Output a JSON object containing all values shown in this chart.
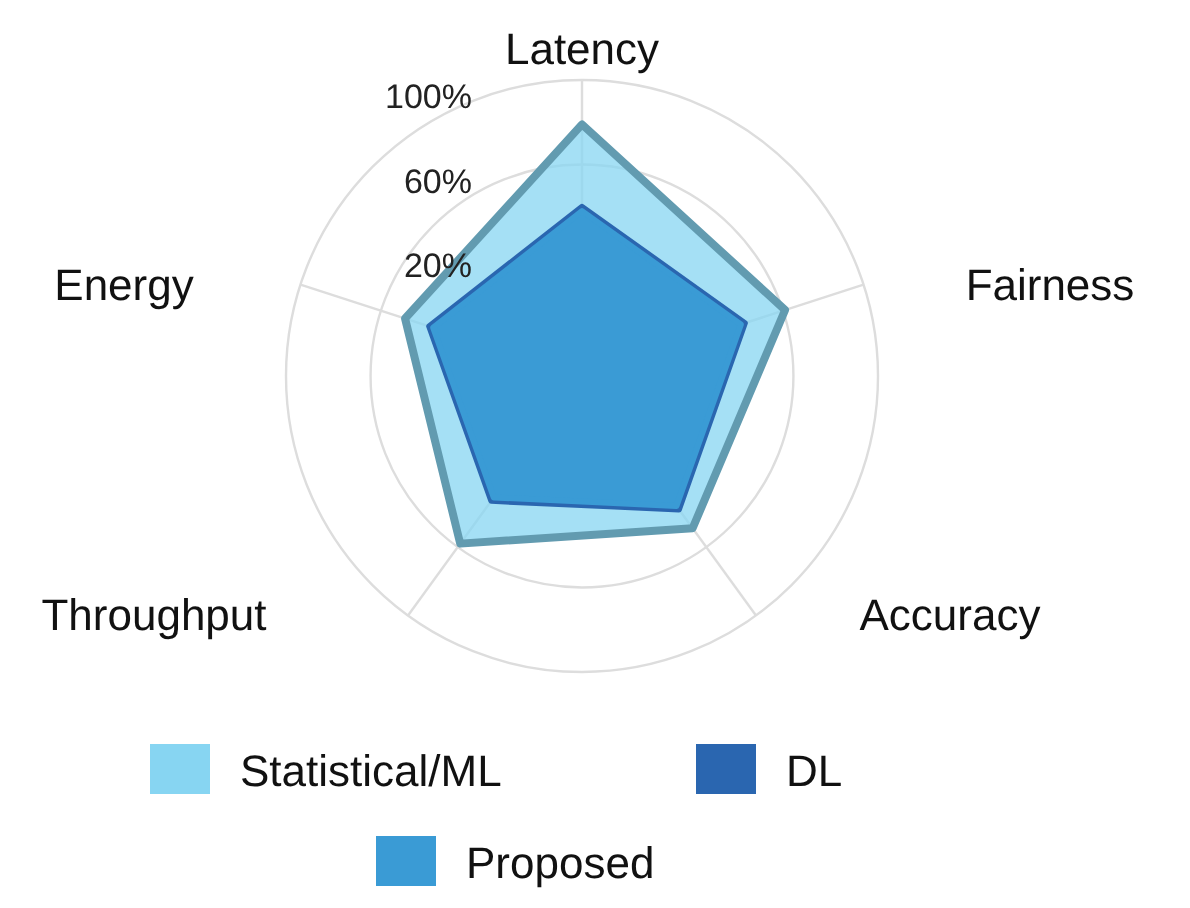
{
  "chart_data": {
    "type": "radar",
    "categories": [
      "Latency",
      "Fairness",
      "Accuracy",
      "Throughput",
      "Energy"
    ],
    "ylim": [
      -40,
      100
    ],
    "yticks": [
      {
        "value": 20,
        "label": "20%"
      },
      {
        "value": 60,
        "label": "60%"
      },
      {
        "value": 100,
        "label": "100%"
      }
    ],
    "grid": true,
    "legend": "bottom",
    "series": [
      {
        "name": "Statistical/ML",
        "color": "#87d5f2",
        "values": [
          79,
          61,
          49,
          58,
          48
        ]
      },
      {
        "name": "DL",
        "color": "#2a66b0",
        "values": [
          40,
          41,
          38,
          33,
          36
        ]
      },
      {
        "name": "Proposed",
        "color": "#3a9bd5",
        "values": [
          38,
          39,
          36,
          31,
          34
        ]
      }
    ]
  }
}
